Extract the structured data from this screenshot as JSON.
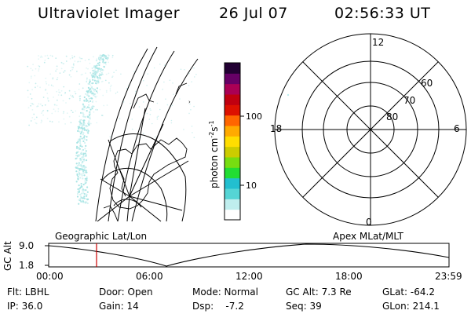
{
  "header": {
    "instrument": "Ultraviolet Imager",
    "date": "26 Jul 07",
    "time": "02:56:33 UT"
  },
  "colorbar": {
    "unit": "photon cm",
    "unit_sup1": "-2",
    "unit_mid": "s",
    "unit_sup2": "-1",
    "tick_100": "100",
    "tick_10": "10",
    "colors": [
      "#ffffff",
      "#bfeeee",
      "#55d5d5",
      "#22bfcf",
      "#22dd33",
      "#77dd11",
      "#cccc00",
      "#ffdd00",
      "#ffaa00",
      "#ff6600",
      "#dd1100",
      "#c00010",
      "#aa0055",
      "#660066",
      "#220033"
    ]
  },
  "polar_plot": {
    "mlt_12": "12",
    "mlt_18": "18",
    "mlt_6": "6",
    "mlt_0": "0",
    "lat_60": "60",
    "lat_70": "70",
    "lat_80": "80"
  },
  "map": {
    "label": "Geographic Lat/Lon"
  },
  "apex_label": "Apex MLat/MLT",
  "altitude_plot": {
    "ylabel": "GC Alt",
    "ytick_top": "9.0",
    "ytick_bottom": "1.8",
    "xticks": [
      "00:00",
      "06:00",
      "12:00",
      "18:00",
      "23:59"
    ],
    "marker_color": "#cc0000"
  },
  "info": {
    "flt": "Flt: LBHL",
    "door": "Door: Open",
    "mode": "Mode: Normal",
    "gc_alt": "GC Alt: 7.3 Re",
    "glat": "GLat: -64.2",
    "ip": "IP: 36.0",
    "gain": "Gain: 14",
    "dsp": "Dsp:    -7.2",
    "seq": "Seq: 39",
    "glon": "GLon: 214.1"
  }
}
